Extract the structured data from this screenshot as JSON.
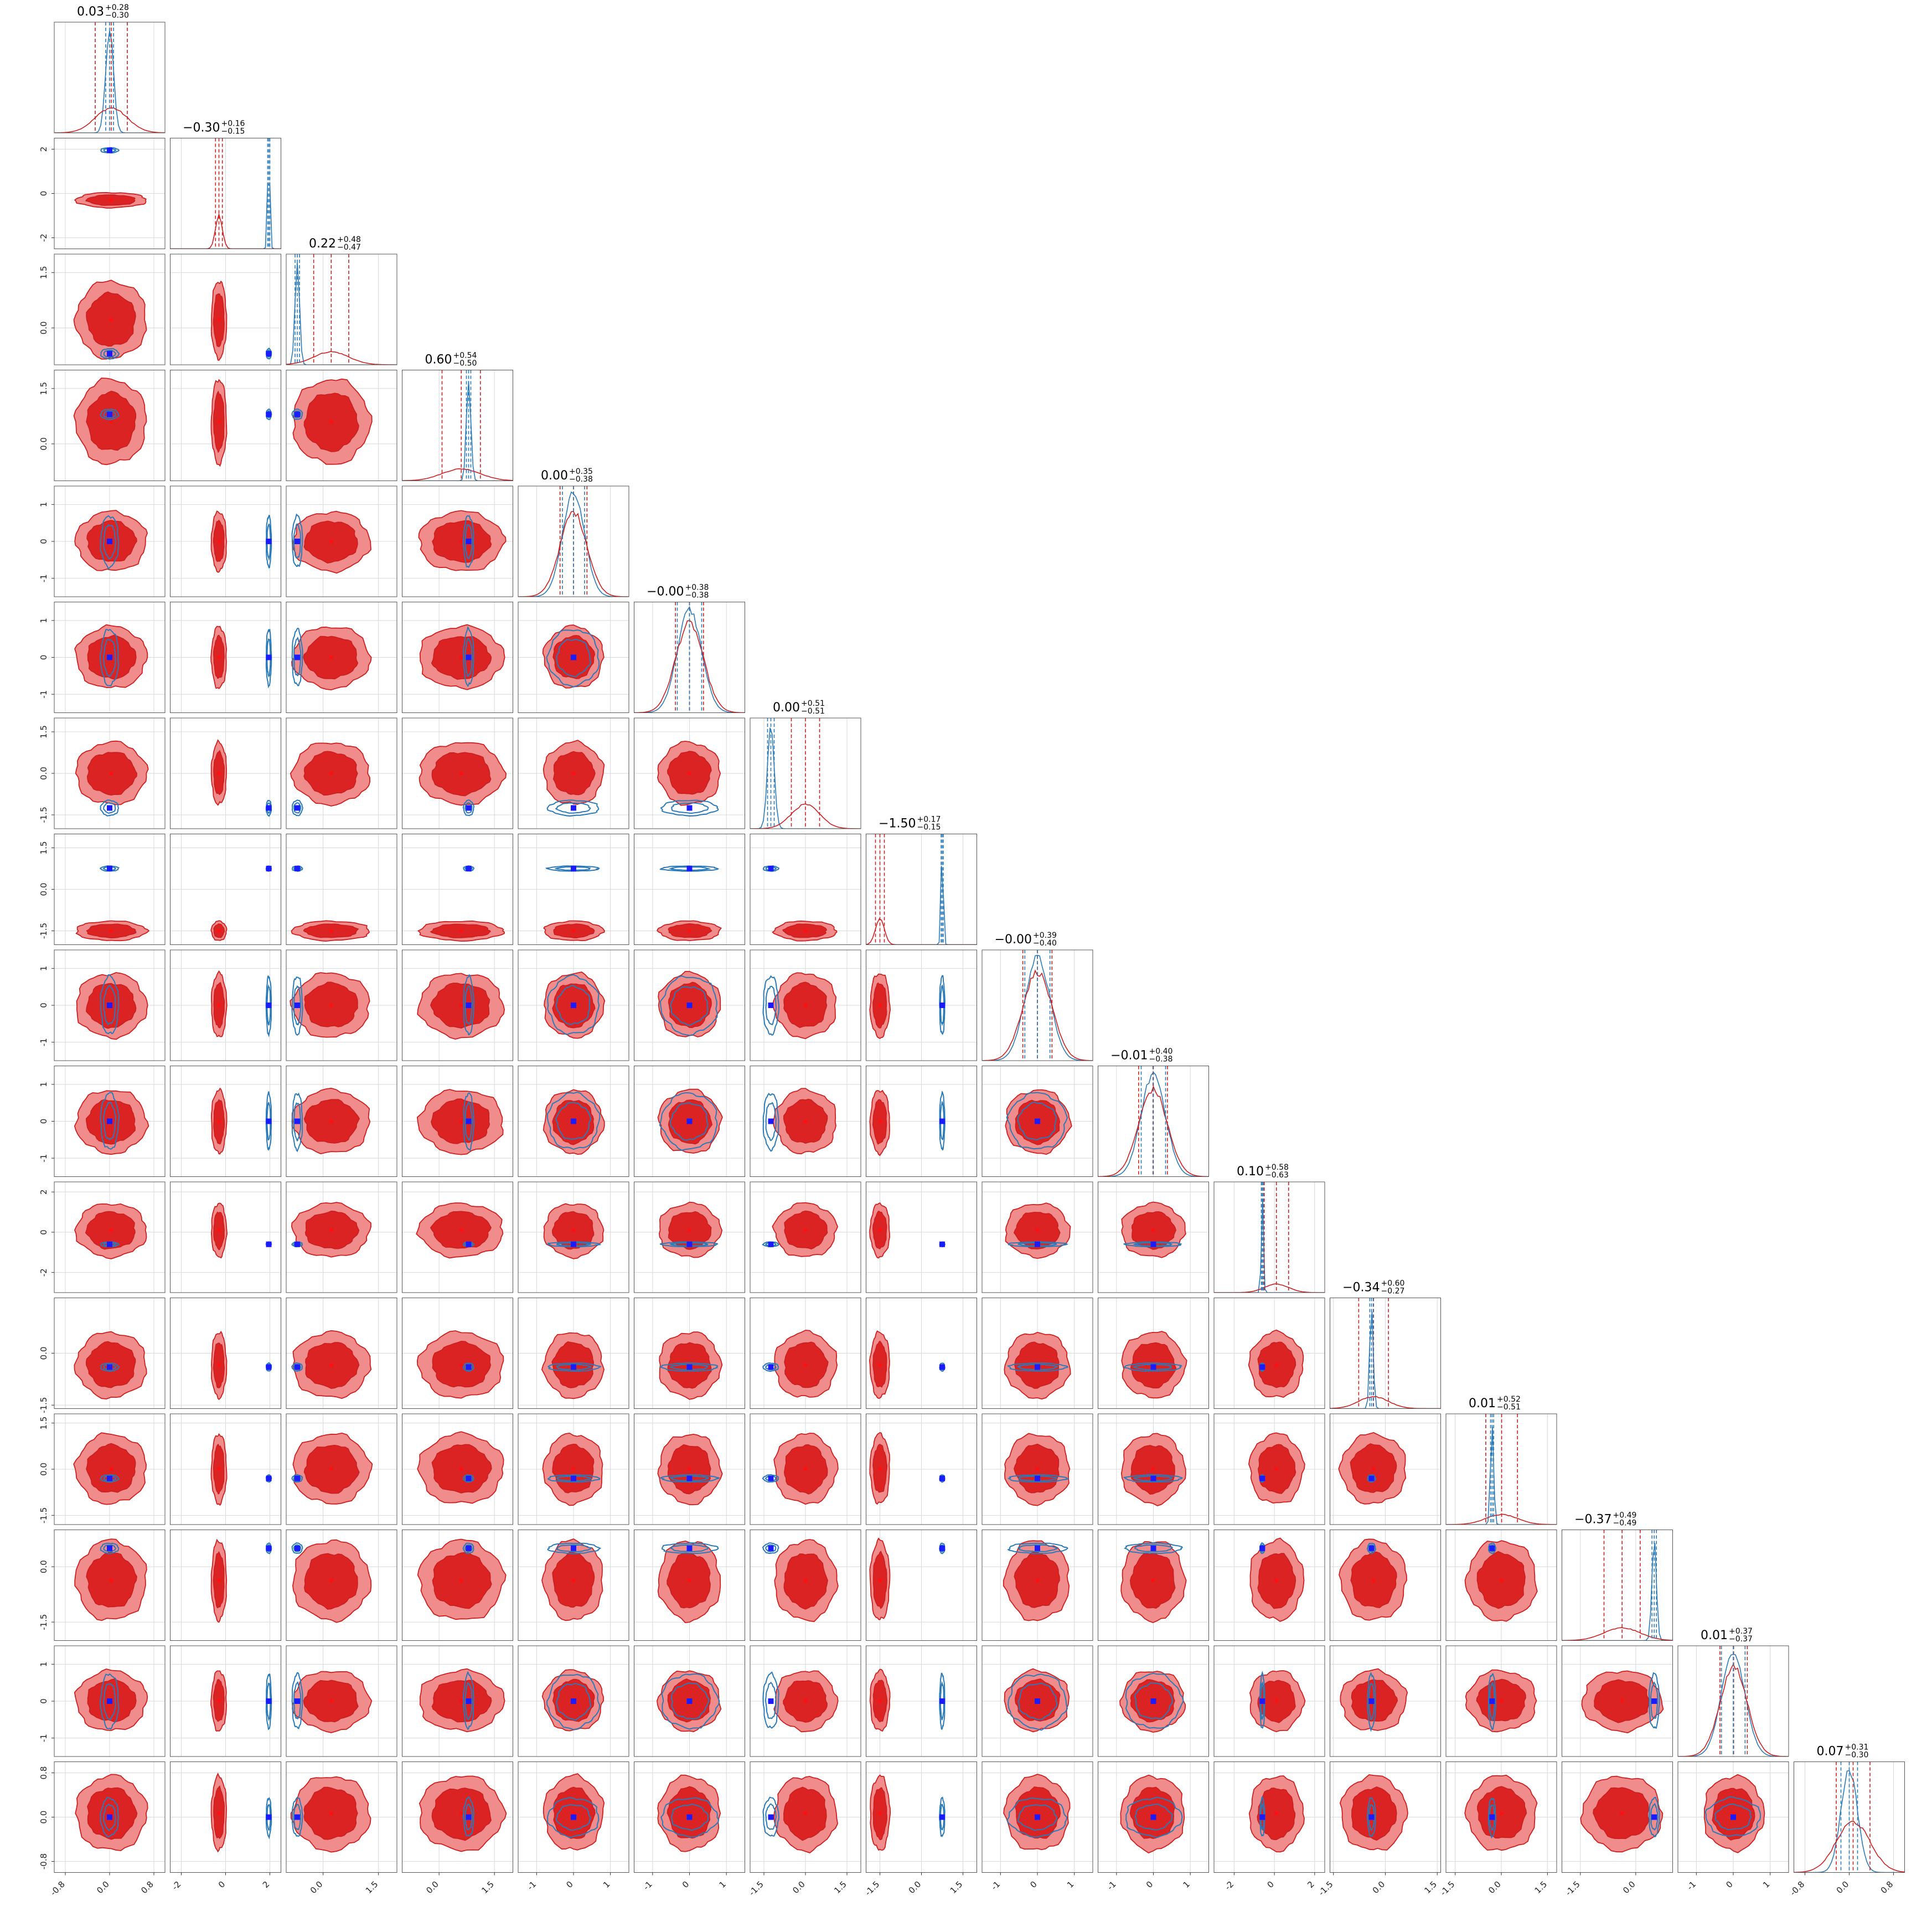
{
  "chart_data": {
    "type": "corner",
    "n_params": 16,
    "grid": true,
    "colors": {
      "red_fill_outer": "#f08c8c",
      "red_fill_inner": "#dc2323",
      "red_line": "#cc2020",
      "blue_line": "#2a7ab8",
      "blue_marker": "#1b1bff",
      "red_marker": "#ff1010",
      "grid": "#d8d8d8"
    },
    "ranges": [
      [
        -1.0,
        1.0
      ],
      [
        -2.5,
        2.5
      ],
      [
        -1.0,
        2.0
      ],
      [
        -1.0,
        2.0
      ],
      [
        -1.5,
        1.5
      ],
      [
        -1.5,
        1.5
      ],
      [
        -2.0,
        2.0
      ],
      [
        -2.0,
        2.0
      ],
      [
        -1.5,
        1.5
      ],
      [
        -1.5,
        1.5
      ],
      [
        -3.0,
        2.5
      ],
      [
        -1.6,
        1.6
      ],
      [
        -1.8,
        1.8
      ],
      [
        -2.0,
        1.0
      ],
      [
        -1.5,
        1.5
      ],
      [
        -1.0,
        1.0
      ]
    ],
    "x_ticks": [
      [
        "-0.8",
        "0.0",
        "0.8"
      ],
      [
        "-2",
        "0",
        "2"
      ],
      [
        "0.0",
        "1.5"
      ],
      [
        "0.0",
        "1.5"
      ],
      [
        "-1",
        "0",
        "1"
      ],
      [
        "-1",
        "0",
        "1"
      ],
      [
        "-1.5",
        "0.0",
        "1.5"
      ],
      [
        "-1.5",
        "0.0",
        "1.5"
      ],
      [
        "-1",
        "0",
        "1"
      ],
      [
        "-1",
        "0",
        "1"
      ],
      [
        "-2",
        "0",
        "2"
      ],
      [
        "-1.5",
        "0.0",
        "1.5"
      ],
      [
        "-1.5",
        "0.0",
        "1.5"
      ],
      [
        "-1.5",
        "0.0"
      ],
      [
        "-1",
        "0",
        "1"
      ],
      [
        "-0.8",
        "0.0",
        "0.8"
      ]
    ],
    "x_tick_values": [
      [
        -0.8,
        0.0,
        0.8
      ],
      [
        -2,
        0,
        2
      ],
      [
        0.0,
        1.5
      ],
      [
        0.0,
        1.5
      ],
      [
        -1,
        0,
        1
      ],
      [
        -1,
        0,
        1
      ],
      [
        -1.5,
        0.0,
        1.5
      ],
      [
        -1.5,
        0.0,
        1.5
      ],
      [
        -1,
        0,
        1
      ],
      [
        -1,
        0,
        1
      ],
      [
        -2,
        0,
        2
      ],
      [
        -1.5,
        0.0,
        1.5
      ],
      [
        -1.5,
        0.0,
        1.5
      ],
      [
        -1.5,
        0.0
      ],
      [
        -1,
        0,
        1
      ],
      [
        -0.8,
        0.0,
        0.8
      ]
    ],
    "y_ticks": [
      null,
      [
        "2",
        "0",
        "-2"
      ],
      [
        "1.5",
        "0.0"
      ],
      [
        "1.5",
        "0.0"
      ],
      [
        "1",
        "0",
        "-1"
      ],
      [
        "1",
        "0",
        "-1"
      ],
      [
        "1.5",
        "0.0",
        "-1.5"
      ],
      [
        "1.5",
        "0.0",
        "-1.5"
      ],
      [
        "1",
        "0",
        "-1"
      ],
      [
        "1",
        "0",
        "-1"
      ],
      [
        "2",
        "0",
        "-2"
      ],
      [
        "0.0",
        "-1.5"
      ],
      [
        "1.5",
        "0.0",
        "-1.5"
      ],
      [
        "0.0",
        "-1.5"
      ],
      [
        "1",
        "0",
        "-1"
      ],
      [
        "0.8",
        "0.0",
        "-0.8"
      ]
    ],
    "y_tick_values": [
      null,
      [
        2,
        0,
        -2
      ],
      [
        1.5,
        0.0
      ],
      [
        1.5,
        0.0
      ],
      [
        1,
        0,
        -1
      ],
      [
        1,
        0,
        -1
      ],
      [
        1.5,
        0.0,
        -1.5
      ],
      [
        1.5,
        0.0,
        -1.5
      ],
      [
        1,
        0,
        -1
      ],
      [
        1,
        0,
        -1
      ],
      [
        2,
        0,
        -2
      ],
      [
        0.0,
        -1.5
      ],
      [
        1.5,
        0.0,
        -1.5
      ],
      [
        0.0,
        -1.5
      ],
      [
        1,
        0,
        -1
      ],
      [
        0.8,
        0.0,
        -0.8
      ]
    ],
    "titles": [
      {
        "median": "0.03",
        "plus": "+0.28",
        "minus": "−0.30"
      },
      {
        "median": "−0.30",
        "plus": "+0.16",
        "minus": "−0.15"
      },
      {
        "median": "0.22",
        "plus": "+0.48",
        "minus": "−0.47"
      },
      {
        "median": "0.60",
        "plus": "+0.54",
        "minus": "−0.50"
      },
      {
        "median": "0.00",
        "plus": "+0.35",
        "minus": "−0.38"
      },
      {
        "median": "−0.00",
        "plus": "+0.38",
        "minus": "−0.38"
      },
      {
        "median": "0.00",
        "plus": "+0.51",
        "minus": "−0.51"
      },
      {
        "median": "−1.50",
        "plus": "+0.17",
        "minus": "−0.15"
      },
      {
        "median": "−0.00",
        "plus": "+0.39",
        "minus": "−0.40"
      },
      {
        "median": "−0.01",
        "plus": "+0.40",
        "minus": "−0.38"
      },
      {
        "median": "0.10",
        "plus": "+0.58",
        "minus": "−0.63"
      },
      {
        "median": "−0.34",
        "plus": "+0.60",
        "minus": "−0.27"
      },
      {
        "median": "0.01",
        "plus": "+0.52",
        "minus": "−0.51"
      },
      {
        "median": "−0.37",
        "plus": "+0.49",
        "minus": "−0.49"
      },
      {
        "median": "0.01",
        "plus": "+0.37",
        "minus": "−0.37"
      },
      {
        "median": "0.07",
        "plus": "+0.31",
        "minus": "−0.30"
      }
    ],
    "red_posterior": {
      "mean": [
        0.03,
        -0.3,
        0.22,
        0.6,
        0.0,
        0.0,
        0.0,
        -1.5,
        0.0,
        -0.01,
        0.1,
        -0.34,
        0.01,
        -0.37,
        0.01,
        0.07
      ],
      "sigma": [
        0.29,
        0.155,
        0.475,
        0.52,
        0.365,
        0.38,
        0.51,
        0.16,
        0.395,
        0.39,
        0.605,
        0.43,
        0.515,
        0.49,
        0.37,
        0.305
      ]
    },
    "blue_posterior": {
      "mean": [
        0.0,
        1.95,
        -0.7,
        0.8,
        0.0,
        0.0,
        -1.25,
        0.75,
        0.0,
        0.0,
        -0.6,
        -0.4,
        -0.3,
        0.5,
        0.0,
        0.0
      ],
      "sigma": [
        0.07,
        0.05,
        0.06,
        0.06,
        0.3,
        0.33,
        0.12,
        0.04,
        0.34,
        0.33,
        0.05,
        0.05,
        0.05,
        0.06,
        0.32,
        0.15
      ]
    },
    "bimodal_red_dims": [
      7
    ],
    "red_markers_second_mode": [
      0.6,
      0.8
    ]
  }
}
